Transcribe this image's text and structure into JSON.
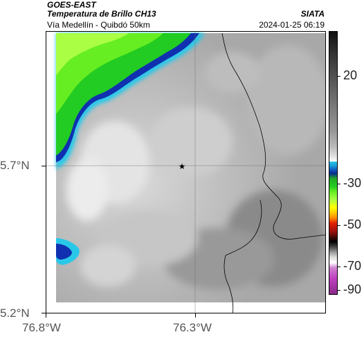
{
  "header": {
    "satellite": "GOES-EAST",
    "product": "Temperatura de Brillo CH13",
    "region": "Vía Medellín - Quibdó 50km",
    "org": "SIATA",
    "datetime": "2024-01-25 06:19"
  },
  "map": {
    "y_ticks": [
      "5.7°N",
      "5.2°N"
    ],
    "x_ticks": [
      "76.8°W",
      "76.3°W"
    ],
    "marker": "star-marker"
  },
  "colorbar": {
    "ticks": [
      "20",
      "-30",
      "-50",
      "-70",
      "-90"
    ],
    "colors": {
      "warm_top": "#111111",
      "gray_mid": "#888888",
      "white": "#ffffff",
      "cyan": "#29c8e8",
      "blue": "#1030b0",
      "green": "#22cc22",
      "yellow": "#ffff00",
      "red": "#e02000",
      "black": "#000000",
      "magenta": "#c040c0"
    }
  }
}
